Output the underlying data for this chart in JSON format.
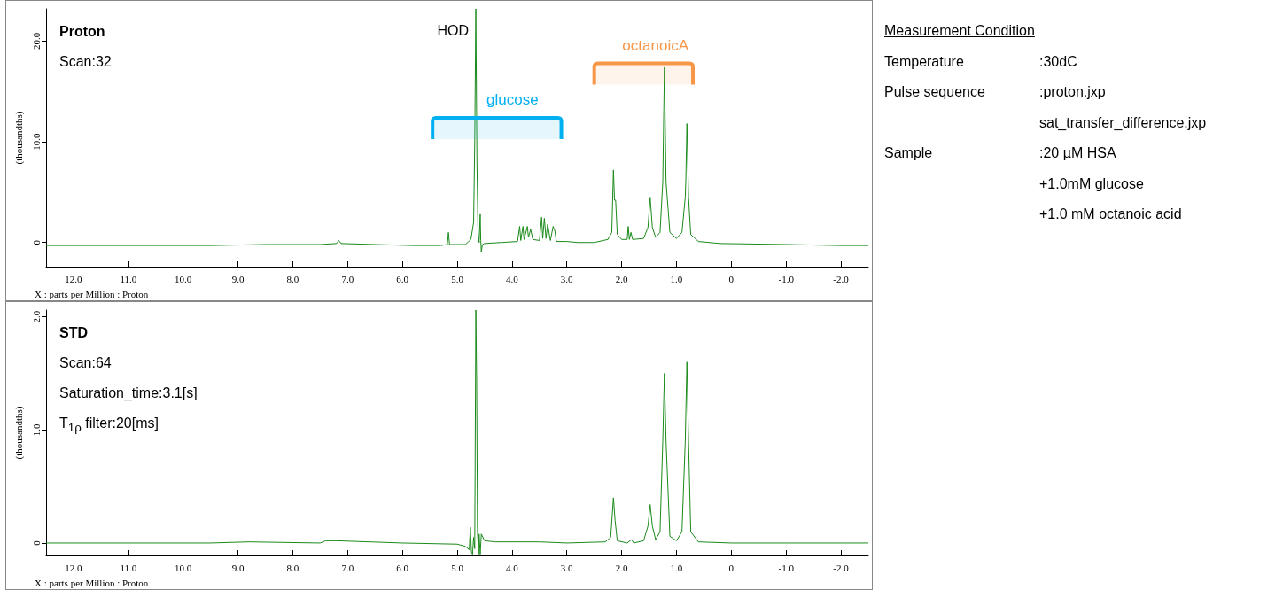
{
  "chart_data": [
    {
      "type": "line",
      "title": "Proton",
      "xlabel": "X : parts per Million : Proton",
      "ylabel": "(thousandths)",
      "annotations": [
        "Scan:32",
        {
          "text": "HOD",
          "x": 4.66,
          "y": 20.9
        }
      ],
      "bands": [
        {
          "axis": "x",
          "from": 5.45,
          "to": 3.1,
          "label": "glucose",
          "color": "#00b0f0"
        },
        {
          "axis": "x",
          "from": 2.5,
          "to": 0.7,
          "label": "octanoicA",
          "color": "#f79646"
        }
      ],
      "xlim": [
        12.5,
        -2.5
      ],
      "xticks": [
        {
          "value": 12,
          "label": "12.0"
        },
        {
          "value": 11,
          "label": "11.0"
        },
        {
          "value": 10,
          "label": "10.0"
        },
        {
          "value": 9,
          "label": "9.0"
        },
        {
          "value": 8,
          "label": "8.0"
        },
        {
          "value": 7,
          "label": "7.0"
        },
        {
          "value": 6,
          "label": "6.0"
        },
        {
          "value": 5,
          "label": "5.0"
        },
        {
          "value": 4,
          "label": "4.0"
        },
        {
          "value": 3,
          "label": "3.0"
        },
        {
          "value": 2,
          "label": "2.0"
        },
        {
          "value": 1,
          "label": "1.0"
        },
        0,
        {
          "value": -1,
          "label": "-1.0"
        },
        {
          "value": -2,
          "label": "-2.0"
        }
      ],
      "ylim": [
        -2.4,
        23.2
      ],
      "yticks": [
        0,
        {
          "value": 10,
          "label": "10.0"
        },
        {
          "value": 20,
          "label": "20.0"
        }
      ],
      "series": [
        {
          "color": "#1a8a1a",
          "x": [
            12.5,
            11.0,
            9.5,
            8.5,
            7.5,
            7.2,
            7.16,
            7.12,
            6.5,
            5.8,
            5.3,
            5.18,
            5.16,
            5.14,
            4.85,
            4.75,
            4.7,
            4.68,
            4.66,
            4.64,
            4.62,
            4.6,
            4.58,
            4.57,
            4.56,
            4.54,
            4.5,
            4.2,
            3.9,
            3.86,
            3.84,
            3.8,
            3.78,
            3.72,
            3.7,
            3.66,
            3.62,
            3.5,
            3.46,
            3.44,
            3.41,
            3.38,
            3.35,
            3.3,
            3.25,
            3.22,
            3.19,
            3.0,
            2.8,
            2.5,
            2.25,
            2.18,
            2.15,
            2.13,
            2.11,
            2.08,
            2.0,
            1.9,
            1.88,
            1.86,
            1.83,
            1.8,
            1.6,
            1.52,
            1.48,
            1.44,
            1.38,
            1.3,
            1.25,
            1.22,
            1.19,
            1.12,
            1.0,
            0.9,
            0.84,
            0.83,
            0.81,
            0.78,
            0.74,
            0.6,
            0.2,
            -1.0,
            -2.0,
            -2.5
          ],
          "values": [
            -0.3,
            -0.3,
            -0.3,
            -0.2,
            -0.2,
            -0.1,
            0.2,
            -0.1,
            -0.2,
            -0.3,
            -0.3,
            -0.2,
            1.0,
            -0.2,
            -0.2,
            0.3,
            2.0,
            10.0,
            23.2,
            8.0,
            1.0,
            0.0,
            2.8,
            0.2,
            -0.9,
            -0.2,
            -0.1,
            0.0,
            0.1,
            1.6,
            0.2,
            1.6,
            0.3,
            1.6,
            0.5,
            1.3,
            0.3,
            0.2,
            2.5,
            0.4,
            2.4,
            0.4,
            1.8,
            0.2,
            1.6,
            1.2,
            0.1,
            0.1,
            0.0,
            0.0,
            0.3,
            1.0,
            7.2,
            4.2,
            4.2,
            0.8,
            0.3,
            0.3,
            1.6,
            0.3,
            1.0,
            0.3,
            0.4,
            1.5,
            4.5,
            1.5,
            0.5,
            1.0,
            6.0,
            17.4,
            6.0,
            1.0,
            0.4,
            1.0,
            4.5,
            6.0,
            11.8,
            4.5,
            0.8,
            0.1,
            -0.1,
            -0.2,
            -0.3,
            -0.3
          ]
        }
      ]
    },
    {
      "type": "line",
      "title": "STD",
      "xlabel": "X : parts per Million : Proton",
      "ylabel": "(thousandths)",
      "annotations": [
        "Scan:64",
        "Saturation_time:3.1[s]",
        "T$_{1ρ}$ filter:20[ms]"
      ],
      "xlim": [
        12.5,
        -2.5
      ],
      "xticks": [
        {
          "value": 12,
          "label": "12.0"
        },
        {
          "value": 11,
          "label": "11.0"
        },
        {
          "value": 10,
          "label": "10.0"
        },
        {
          "value": 9,
          "label": "9.0"
        },
        {
          "value": 8,
          "label": "8.0"
        },
        {
          "value": 7,
          "label": "7.0"
        },
        {
          "value": 6,
          "label": "6.0"
        },
        {
          "value": 5,
          "label": "5.0"
        },
        {
          "value": 4,
          "label": "4.0"
        },
        {
          "value": 3,
          "label": "3.0"
        },
        {
          "value": 2,
          "label": "2.0"
        },
        {
          "value": 1,
          "label": "1.0"
        },
        0,
        {
          "value": -1,
          "label": "-1.0"
        },
        {
          "value": -2,
          "label": "-2.0"
        }
      ],
      "ylim": [
        -0.11,
        2.06
      ],
      "yticks": [
        0,
        {
          "value": 1,
          "label": "1.0"
        },
        {
          "value": 2,
          "label": "2.0"
        }
      ],
      "series": [
        {
          "color": "#1a8a1a",
          "x": [
            12.5,
            11.0,
            9.5,
            8.8,
            7.5,
            7.4,
            7.2,
            6.0,
            5.0,
            4.85,
            4.78,
            4.76,
            4.74,
            4.72,
            4.7,
            4.68,
            4.66,
            4.645,
            4.63,
            4.61,
            4.6,
            4.58,
            4.56,
            4.5,
            4.3,
            3.5,
            3.0,
            2.3,
            2.2,
            2.15,
            2.12,
            2.08,
            1.9,
            1.82,
            1.78,
            1.6,
            1.52,
            1.48,
            1.44,
            1.38,
            1.3,
            1.25,
            1.22,
            1.19,
            1.12,
            1.0,
            0.9,
            0.84,
            0.81,
            0.78,
            0.74,
            0.6,
            0.0,
            -1.0,
            -2.0,
            -2.5
          ],
          "values": [
            0,
            0,
            0,
            0.01,
            0,
            0.02,
            0.02,
            0,
            -0.01,
            -0.03,
            -0.06,
            0.14,
            -0.08,
            -0.1,
            0.05,
            -0.05,
            2.06,
            1.43,
            0.1,
            -0.1,
            0.08,
            -0.1,
            0.08,
            0.02,
            0.01,
            0.01,
            0,
            0.01,
            0.05,
            0.4,
            0.2,
            0.02,
            0,
            0.03,
            0,
            0.02,
            0.15,
            0.34,
            0.15,
            0.03,
            0.1,
            0.9,
            1.5,
            0.9,
            0.06,
            0.02,
            0.1,
            0.9,
            1.6,
            0.9,
            0.1,
            0.01,
            0,
            0,
            0,
            0
          ]
        }
      ]
    },
    {
      "type": "other",
      "title": "Measurement Condition",
      "annotations": [
        "Temperature :30dC",
        "Pulse sequence :proton.jxp",
        "sat_transfer_difference.jxp",
        "Sample :20 µM HSA",
        "+1.0mM glucose",
        "+1.0 mM octanoic acid"
      ]
    }
  ]
}
